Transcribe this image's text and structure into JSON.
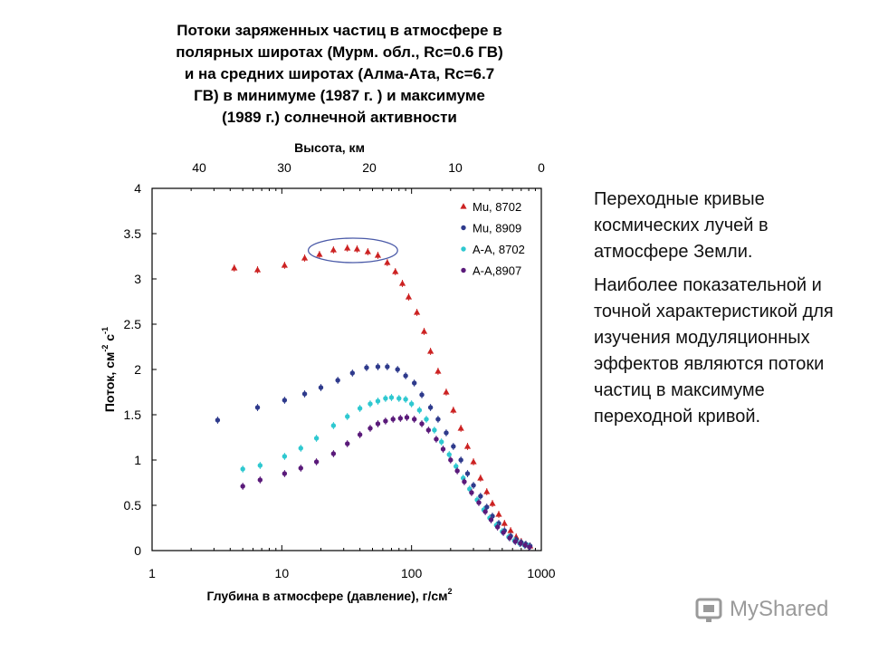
{
  "slide": {
    "paragraphs": [
      "Переходные кривые космических лучей в атмосфере Земли.",
      "Наиболее показательной  и точной характеристикой для изучения модуляционных эффектов являются потоки  частиц в максимуме переходной кривой."
    ],
    "watermark": "MyShared"
  },
  "colors": {
    "Mu_8702": "#cc2222",
    "Mu_8909": "#2e3a8c",
    "AA_8702": "#2ec8d0",
    "AA_8907": "#5a1a7a",
    "ellipse": "#4a5aa8"
  },
  "chart_data": {
    "type": "scatter",
    "title_lines": [
      "Потоки заряженных частиц в атмосфере в",
      "полярных широтах (Мурм. обл., Rc=0.6 ГВ)",
      "и на средних широтах (Алма-Ата, Rc=6.7",
      "ГВ) в минимуме (1987 г. ) и максимуме",
      "(1989 г.) солнечной активности"
    ],
    "xlabel_main": "Глубина в атмосфере (давление), г/см",
    "xlabel_sup": "2",
    "ylabel_main": "Поток, см",
    "ylabel_sup1": "-2",
    "ylabel_mid": " с",
    "ylabel_sup2": "-1",
    "top_axis_label": "Высота, км",
    "x_scale": "log",
    "xlim": [
      1,
      1000
    ],
    "ylim": [
      0,
      4
    ],
    "x_ticks": [
      "1",
      "10",
      "100",
      "1000"
    ],
    "y_ticks": [
      "0",
      "0.5",
      "1",
      "1.5",
      "2",
      "2.5",
      "3",
      "3.5",
      "4"
    ],
    "top_ticks": [
      "40",
      "30",
      "20",
      "10",
      "0"
    ],
    "legend_position": "top-right",
    "series": [
      {
        "name": "Mu, 8702",
        "marker": "triangle",
        "x": [
          4.3,
          6.5,
          10.5,
          15,
          19.5,
          25,
          32,
          38,
          46,
          55,
          65,
          75,
          85,
          95,
          110,
          125,
          140,
          160,
          185,
          210,
          240,
          270,
          300,
          340,
          380,
          420,
          470,
          520,
          580,
          640,
          700,
          760,
          820
        ],
        "y": [
          3.12,
          3.1,
          3.15,
          3.23,
          3.27,
          3.32,
          3.34,
          3.33,
          3.3,
          3.26,
          3.18,
          3.08,
          2.95,
          2.8,
          2.63,
          2.42,
          2.2,
          1.98,
          1.75,
          1.55,
          1.35,
          1.15,
          0.98,
          0.8,
          0.65,
          0.52,
          0.4,
          0.3,
          0.22,
          0.15,
          0.1,
          0.07,
          0.05
        ]
      },
      {
        "name": "Mu, 8909",
        "marker": "circle",
        "x": [
          3.2,
          6.5,
          10.5,
          15,
          20,
          27,
          35,
          45,
          55,
          65,
          78,
          90,
          105,
          120,
          140,
          160,
          185,
          210,
          240,
          270,
          300,
          340,
          380,
          420,
          470,
          520,
          580,
          640,
          700,
          760,
          820
        ],
        "y": [
          1.44,
          1.58,
          1.66,
          1.73,
          1.8,
          1.88,
          1.96,
          2.02,
          2.03,
          2.03,
          2.0,
          1.93,
          1.85,
          1.72,
          1.58,
          1.45,
          1.3,
          1.15,
          1.0,
          0.85,
          0.72,
          0.6,
          0.48,
          0.38,
          0.3,
          0.22,
          0.16,
          0.12,
          0.09,
          0.07,
          0.05
        ]
      },
      {
        "name": "А-А, 8702",
        "marker": "circle",
        "x": [
          5.0,
          6.8,
          10.5,
          14,
          18.5,
          25,
          32,
          40,
          48,
          55,
          63,
          70,
          80,
          90,
          100,
          115,
          130,
          150,
          170,
          195,
          220,
          250,
          280,
          320,
          360,
          400,
          450,
          500,
          560,
          620,
          680,
          740,
          800
        ],
        "y": [
          0.9,
          0.94,
          1.04,
          1.13,
          1.24,
          1.38,
          1.48,
          1.57,
          1.62,
          1.65,
          1.68,
          1.69,
          1.68,
          1.67,
          1.62,
          1.55,
          1.45,
          1.33,
          1.2,
          1.06,
          0.93,
          0.8,
          0.68,
          0.56,
          0.45,
          0.36,
          0.28,
          0.21,
          0.15,
          0.11,
          0.08,
          0.06,
          0.05
        ]
      },
      {
        "name": "А-А,8907",
        "marker": "circle",
        "x": [
          5.0,
          6.8,
          10.5,
          14,
          18.5,
          25,
          32,
          40,
          48,
          55,
          63,
          72,
          82,
          92,
          105,
          120,
          135,
          155,
          175,
          200,
          225,
          255,
          290,
          330,
          370,
          410,
          460,
          510,
          570,
          630,
          690,
          750,
          810
        ],
        "y": [
          0.71,
          0.78,
          0.85,
          0.91,
          0.98,
          1.07,
          1.18,
          1.28,
          1.35,
          1.4,
          1.43,
          1.45,
          1.46,
          1.47,
          1.45,
          1.4,
          1.33,
          1.23,
          1.12,
          1.0,
          0.88,
          0.76,
          0.64,
          0.53,
          0.43,
          0.34,
          0.26,
          0.2,
          0.14,
          0.1,
          0.08,
          0.06,
          0.04
        ]
      }
    ],
    "highlight_ellipse": {
      "x_range": [
        16,
        78
      ],
      "y_range": [
        3.18,
        3.45
      ]
    }
  }
}
